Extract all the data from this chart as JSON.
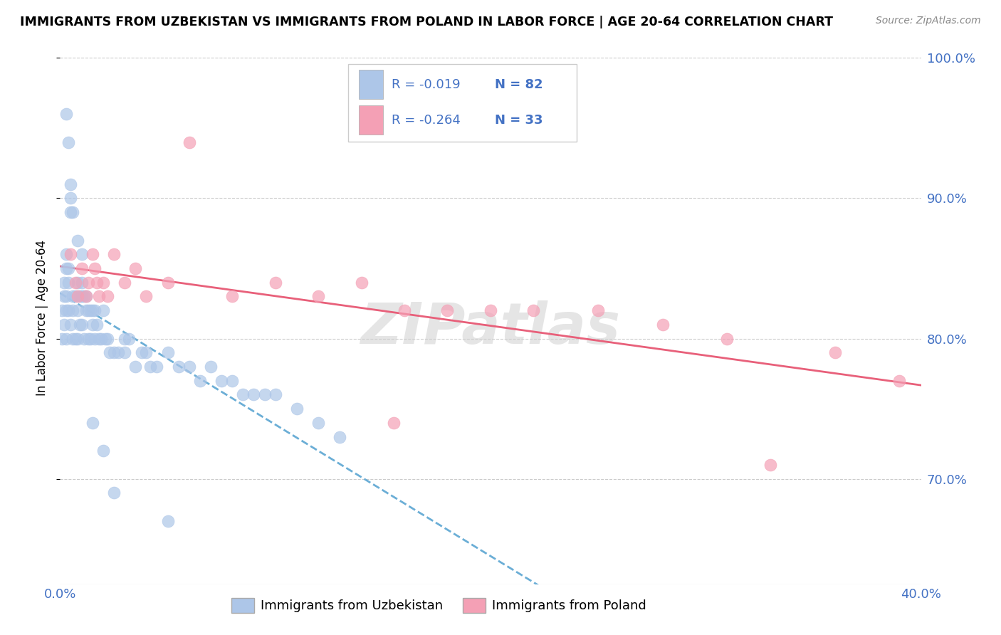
{
  "title": "IMMIGRANTS FROM UZBEKISTAN VS IMMIGRANTS FROM POLAND IN LABOR FORCE | AGE 20-64 CORRELATION CHART",
  "source": "Source: ZipAtlas.com",
  "ylabel": "In Labor Force | Age 20-64",
  "xlim": [
    0.0,
    0.4
  ],
  "ylim": [
    0.625,
    1.005
  ],
  "yticks": [
    1.0,
    0.9,
    0.8,
    0.7
  ],
  "ytick_labels": [
    "100.0%",
    "90.0%",
    "80.0%",
    "70.0%"
  ],
  "xtick_positions": [
    0.0,
    0.05,
    0.1,
    0.15,
    0.2,
    0.25,
    0.3,
    0.35,
    0.4
  ],
  "xtick_labels": [
    "0.0%",
    "",
    "",
    "",
    "",
    "",
    "",
    "",
    "40.0%"
  ],
  "series1_color": "#adc6e8",
  "series2_color": "#f4a0b5",
  "series1_label": "Immigrants from Uzbekistan",
  "series2_label": "Immigrants from Poland",
  "series1_R": "-0.019",
  "series1_N": "82",
  "series2_R": "-0.264",
  "series2_N": "33",
  "series1_trendline_color": "#6baed6",
  "series2_trendline_color": "#e8607a",
  "legend_text_color": "#4472c4",
  "watermark": "ZIPatlas",
  "uzb_x": [
    0.001,
    0.001,
    0.002,
    0.002,
    0.002,
    0.003,
    0.003,
    0.003,
    0.003,
    0.003,
    0.004,
    0.004,
    0.004,
    0.005,
    0.005,
    0.005,
    0.006,
    0.006,
    0.006,
    0.007,
    0.007,
    0.008,
    0.008,
    0.008,
    0.009,
    0.009,
    0.01,
    0.01,
    0.01,
    0.011,
    0.011,
    0.012,
    0.012,
    0.013,
    0.013,
    0.014,
    0.014,
    0.015,
    0.015,
    0.016,
    0.016,
    0.017,
    0.018,
    0.019,
    0.02,
    0.021,
    0.022,
    0.023,
    0.025,
    0.027,
    0.03,
    0.03,
    0.032,
    0.035,
    0.038,
    0.04,
    0.042,
    0.045,
    0.05,
    0.055,
    0.06,
    0.065,
    0.07,
    0.075,
    0.08,
    0.085,
    0.09,
    0.095,
    0.1,
    0.11,
    0.12,
    0.13,
    0.003,
    0.004,
    0.005,
    0.006,
    0.008,
    0.01,
    0.015,
    0.02,
    0.025,
    0.05
  ],
  "uzb_y": [
    0.82,
    0.8,
    0.84,
    0.83,
    0.81,
    0.86,
    0.85,
    0.83,
    0.82,
    0.8,
    0.85,
    0.84,
    0.82,
    0.9,
    0.89,
    0.81,
    0.83,
    0.82,
    0.8,
    0.83,
    0.8,
    0.84,
    0.82,
    0.8,
    0.83,
    0.81,
    0.84,
    0.83,
    0.81,
    0.83,
    0.8,
    0.83,
    0.82,
    0.82,
    0.8,
    0.82,
    0.8,
    0.82,
    0.81,
    0.82,
    0.8,
    0.81,
    0.8,
    0.8,
    0.82,
    0.8,
    0.8,
    0.79,
    0.79,
    0.79,
    0.8,
    0.79,
    0.8,
    0.78,
    0.79,
    0.79,
    0.78,
    0.78,
    0.79,
    0.78,
    0.78,
    0.77,
    0.78,
    0.77,
    0.77,
    0.76,
    0.76,
    0.76,
    0.76,
    0.75,
    0.74,
    0.73,
    0.96,
    0.94,
    0.91,
    0.89,
    0.87,
    0.86,
    0.74,
    0.72,
    0.69,
    0.67
  ],
  "pol_x": [
    0.005,
    0.007,
    0.008,
    0.01,
    0.012,
    0.013,
    0.015,
    0.016,
    0.017,
    0.018,
    0.02,
    0.022,
    0.025,
    0.03,
    0.035,
    0.04,
    0.05,
    0.06,
    0.08,
    0.1,
    0.12,
    0.14,
    0.155,
    0.16,
    0.18,
    0.2,
    0.22,
    0.25,
    0.28,
    0.31,
    0.33,
    0.36,
    0.39
  ],
  "pol_y": [
    0.86,
    0.84,
    0.83,
    0.85,
    0.83,
    0.84,
    0.86,
    0.85,
    0.84,
    0.83,
    0.84,
    0.83,
    0.86,
    0.84,
    0.85,
    0.83,
    0.84,
    0.94,
    0.83,
    0.84,
    0.83,
    0.84,
    0.74,
    0.82,
    0.82,
    0.82,
    0.82,
    0.82,
    0.81,
    0.8,
    0.71,
    0.79,
    0.77
  ]
}
